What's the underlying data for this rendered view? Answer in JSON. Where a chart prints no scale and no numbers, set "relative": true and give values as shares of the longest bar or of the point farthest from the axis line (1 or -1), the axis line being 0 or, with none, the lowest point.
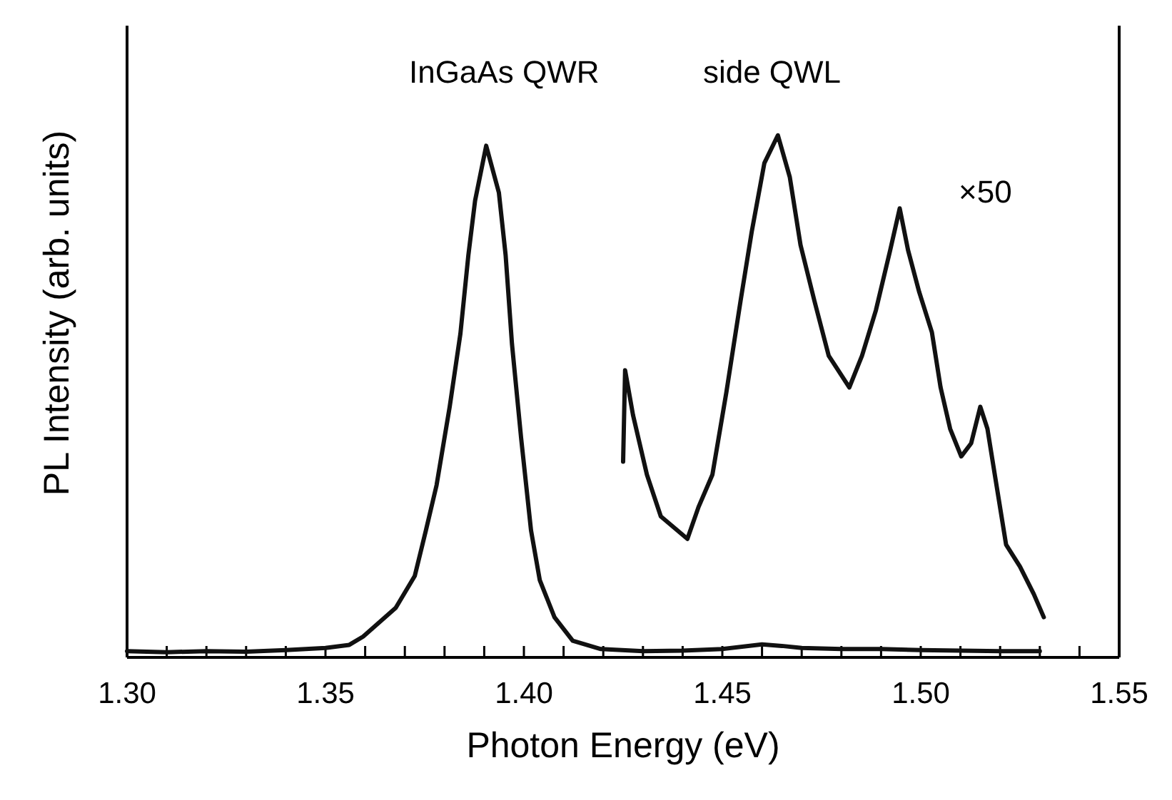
{
  "chart_data": {
    "type": "line",
    "relative": true,
    "xlabel": "Photon Energy (eV)",
    "ylabel": "PL Intensity (arb. units)",
    "xlim": [
      1.3,
      1.55
    ],
    "xticks": [
      {
        "value": 1.3,
        "label": "1.30"
      },
      {
        "value": 1.31,
        "label": null
      },
      {
        "value": 1.32,
        "label": null
      },
      {
        "value": 1.33,
        "label": null
      },
      {
        "value": 1.34,
        "label": null
      },
      1.35,
      {
        "value": 1.36,
        "label": null
      },
      {
        "value": 1.37,
        "label": null
      },
      {
        "value": 1.38,
        "label": null
      },
      {
        "value": 1.39,
        "label": null
      },
      {
        "value": 1.4,
        "label": "1.40"
      },
      {
        "value": 1.41,
        "label": null
      },
      {
        "value": 1.42,
        "label": null
      },
      {
        "value": 1.43,
        "label": null
      },
      {
        "value": 1.44,
        "label": null
      },
      1.45,
      {
        "value": 1.46,
        "label": null
      },
      {
        "value": 1.47,
        "label": null
      },
      {
        "value": 1.48,
        "label": null
      },
      {
        "value": 1.49,
        "label": null
      },
      {
        "value": 1.5,
        "label": "1.50"
      },
      {
        "value": 1.51,
        "label": null
      },
      {
        "value": 1.52,
        "label": null
      },
      {
        "value": 1.53,
        "label": null
      },
      {
        "value": 1.54,
        "label": null
      },
      1.55
    ],
    "grid": false,
    "annotations": [
      "InGaAs QWR",
      "side QWL",
      "×50"
    ],
    "series": [
      {
        "color": "#111111",
        "x": [
          1.3,
          1.31,
          1.32,
          1.33,
          1.34,
          1.35,
          1.356,
          1.3595,
          1.3677,
          1.3725,
          1.3753,
          1.378,
          1.3813,
          1.384,
          1.386,
          1.3877,
          1.3905,
          1.3937,
          1.3954,
          1.397,
          1.3993,
          1.4018,
          1.404,
          1.4077,
          1.4123,
          1.4194,
          1.43,
          1.44,
          1.45,
          1.46,
          1.465,
          1.47,
          1.48,
          1.49,
          1.5,
          1.51,
          1.52,
          1.53
        ],
        "values": [
          0.012,
          0.01,
          0.012,
          0.011,
          0.014,
          0.018,
          0.024,
          0.04,
          0.095,
          0.156,
          0.243,
          0.33,
          0.48,
          0.62,
          0.77,
          0.875,
          0.98,
          0.89,
          0.77,
          0.6,
          0.42,
          0.243,
          0.148,
          0.077,
          0.032,
          0.016,
          0.012,
          0.013,
          0.016,
          0.025,
          0.022,
          0.018,
          0.016,
          0.016,
          0.014,
          0.013,
          0.012,
          0.012
        ]
      },
      {
        "color": "#111111",
        "x": [
          1.425,
          1.4255,
          1.4275,
          1.431,
          1.4345,
          1.4412,
          1.444,
          1.4475,
          1.451,
          1.4546,
          1.4574,
          1.4606,
          1.464,
          1.467,
          1.4697,
          1.4732,
          1.4768,
          1.482,
          1.4852,
          1.4887,
          1.4923,
          1.4947,
          1.4968,
          1.4996,
          1.5028,
          1.505,
          1.5074,
          1.5102,
          1.5127,
          1.515,
          1.5168,
          1.5187,
          1.5215,
          1.525,
          1.5285,
          1.531
        ],
        "values": [
          0.375,
          0.55,
          0.464,
          0.35,
          0.27,
          0.227,
          0.288,
          0.35,
          0.507,
          0.683,
          0.815,
          0.947,
          1,
          0.92,
          0.79,
          0.683,
          0.578,
          0.517,
          0.578,
          0.665,
          0.78,
          0.86,
          0.78,
          0.7,
          0.623,
          0.517,
          0.438,
          0.385,
          0.41,
          0.48,
          0.438,
          0.348,
          0.216,
          0.174,
          0.121,
          0.077
        ]
      }
    ]
  }
}
